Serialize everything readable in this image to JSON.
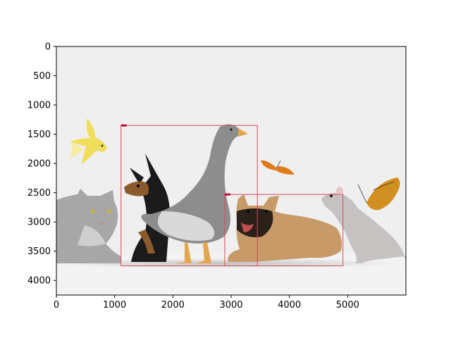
{
  "chart_data": {
    "type": "image",
    "xlim": [
      0,
      6000
    ],
    "ylim": [
      4250,
      0
    ],
    "y_inverted": true,
    "x_ticks": [
      0,
      1000,
      2000,
      3000,
      4000,
      5000
    ],
    "y_ticks": [
      0,
      500,
      1000,
      1500,
      2000,
      2500,
      3000,
      3500,
      4000
    ],
    "x_tick_labels": [
      "0",
      "1000",
      "2000",
      "3000",
      "4000",
      "5000"
    ],
    "y_tick_labels": [
      "0",
      "500",
      "1000",
      "1500",
      "2000",
      "2500",
      "3000",
      "3500",
      "4000"
    ],
    "image_subjects": [
      "goldfish",
      "cat",
      "chihuahua",
      "goose",
      "butterfly",
      "french-bulldog",
      "mouse",
      "butterfly"
    ],
    "boxes": [
      {
        "x0": 1110,
        "y0": 1350,
        "x1": 3450,
        "y1": 3750
      },
      {
        "x0": 2890,
        "y0": 2530,
        "x1": 4920,
        "y1": 3750
      }
    ],
    "box_color": "#d9485f",
    "grid": false,
    "legend": false
  }
}
